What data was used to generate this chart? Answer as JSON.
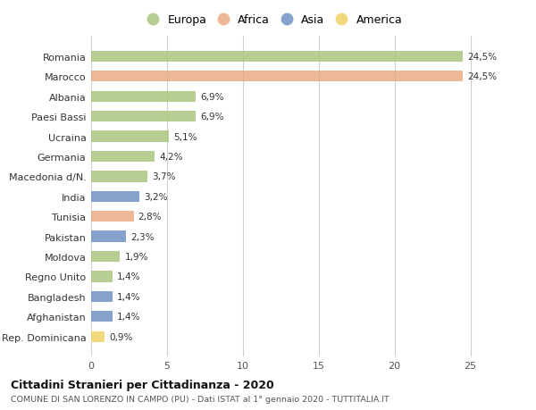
{
  "countries": [
    "Romania",
    "Marocco",
    "Albania",
    "Paesi Bassi",
    "Ucraina",
    "Germania",
    "Macedonia d/N.",
    "India",
    "Tunisia",
    "Pakistan",
    "Moldova",
    "Regno Unito",
    "Bangladesh",
    "Afghanistan",
    "Rep. Dominicana"
  ],
  "values": [
    24.5,
    24.5,
    6.9,
    6.9,
    5.1,
    4.2,
    3.7,
    3.2,
    2.8,
    2.3,
    1.9,
    1.4,
    1.4,
    1.4,
    0.9
  ],
  "labels": [
    "24,5%",
    "24,5%",
    "6,9%",
    "6,9%",
    "5,1%",
    "4,2%",
    "3,7%",
    "3,2%",
    "2,8%",
    "2,3%",
    "1,9%",
    "1,4%",
    "1,4%",
    "1,4%",
    "0,9%"
  ],
  "continents": [
    "Europa",
    "Africa",
    "Europa",
    "Europa",
    "Europa",
    "Europa",
    "Europa",
    "Asia",
    "Africa",
    "Asia",
    "Europa",
    "Europa",
    "Asia",
    "Asia",
    "America"
  ],
  "colors": {
    "Europa": "#a8c47a",
    "Africa": "#e8a97e",
    "Asia": "#6b8fc4",
    "America": "#f0d060"
  },
  "xlim": [
    0,
    26.5
  ],
  "xticks": [
    0,
    5,
    10,
    15,
    20,
    25
  ],
  "title": "Cittadini Stranieri per Cittadinanza - 2020",
  "subtitle": "COMUNE DI SAN LORENZO IN CAMPO (PU) - Dati ISTAT al 1° gennaio 2020 - TUTTITALIA.IT",
  "background_color": "#ffffff",
  "grid_color": "#d0d0d0",
  "bar_height": 0.55
}
